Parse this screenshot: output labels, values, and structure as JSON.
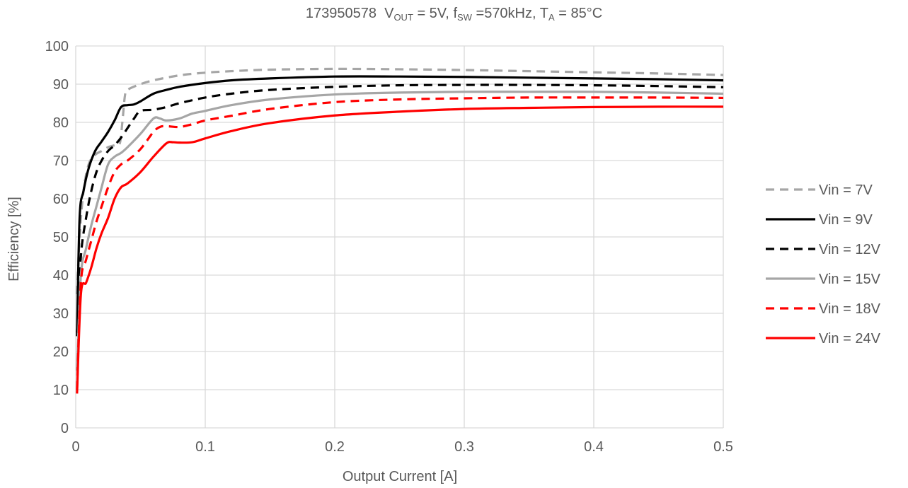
{
  "title": {
    "id": "173950578",
    "vout_main": "V",
    "vout_sub": "OUT",
    "vout_value": " = 5V,",
    "fsw_main": "f",
    "fsw_sub": "SW",
    "fsw_value": " =570kHz,",
    "ta_main": "T",
    "ta_sub": "A",
    "ta_value": " = 85°C"
  },
  "chart_data": {
    "type": "line",
    "title": "173950578  VOUT = 5V, fSW =570kHz, TA = 85°C",
    "xlabel": "Output  Current  [A]",
    "ylabel": "Efficiency  [%]",
    "xlim": [
      0,
      0.5
    ],
    "ylim": [
      0,
      100
    ],
    "xticks": [
      0,
      0.1,
      0.2,
      0.3,
      0.4,
      0.5
    ],
    "xtick_labels": [
      "0",
      "0.1",
      "0.2",
      "0.3",
      "0.4",
      "0.5"
    ],
    "yticks": [
      0,
      10,
      20,
      30,
      40,
      50,
      60,
      70,
      80,
      90,
      100
    ],
    "ytick_labels": [
      "0",
      "10",
      "20",
      "30",
      "40",
      "50",
      "60",
      "70",
      "80",
      "90",
      "100"
    ],
    "grid": true,
    "legend_position": "right",
    "series": [
      {
        "name": "Vin = 7V",
        "color": "#a6a6a6",
        "dash": true,
        "x": [
          0.001,
          0.003,
          0.006,
          0.01,
          0.015,
          0.02,
          0.025,
          0.03,
          0.034,
          0.036,
          0.038,
          0.04,
          0.05,
          0.06,
          0.08,
          0.1,
          0.12,
          0.15,
          0.2,
          0.25,
          0.3,
          0.35,
          0.4,
          0.45,
          0.5
        ],
        "y": [
          35,
          50,
          62,
          69,
          71.5,
          72.5,
          73.5,
          74,
          74.5,
          80,
          87,
          88.5,
          90,
          91,
          92.3,
          93,
          93.4,
          93.8,
          94,
          93.9,
          93.7,
          93.4,
          93.1,
          92.8,
          92.4
        ]
      },
      {
        "name": "Vin = 9V",
        "color": "#000000",
        "dash": false,
        "x": [
          0.001,
          0.003,
          0.006,
          0.01,
          0.015,
          0.02,
          0.025,
          0.03,
          0.035,
          0.04,
          0.045,
          0.05,
          0.06,
          0.07,
          0.08,
          0.1,
          0.12,
          0.15,
          0.2,
          0.25,
          0.3,
          0.35,
          0.4,
          0.45,
          0.5
        ],
        "y": [
          24,
          55,
          62,
          68,
          72.5,
          75,
          77.5,
          80.5,
          84,
          84.5,
          84.7,
          85.5,
          87.5,
          88.5,
          89.3,
          90.3,
          91,
          91.5,
          92,
          92,
          91.9,
          91.7,
          91.5,
          91.3,
          91
        ]
      },
      {
        "name": "Vin = 12V",
        "color": "#000000",
        "dash": true,
        "x": [
          0.001,
          0.004,
          0.008,
          0.012,
          0.016,
          0.02,
          0.025,
          0.03,
          0.035,
          0.04,
          0.045,
          0.05,
          0.06,
          0.07,
          0.08,
          0.1,
          0.12,
          0.15,
          0.2,
          0.25,
          0.3,
          0.35,
          0.4,
          0.45,
          0.5
        ],
        "y": [
          25,
          45,
          55,
          62,
          67,
          70,
          72.5,
          74,
          76,
          78.5,
          81,
          83,
          83.3,
          84,
          85,
          86.5,
          87.5,
          88.5,
          89.3,
          89.7,
          89.8,
          89.8,
          89.7,
          89.5,
          89.2
        ]
      },
      {
        "name": "Vin = 15V",
        "color": "#a6a6a6",
        "dash": false,
        "x": [
          0.001,
          0.004,
          0.008,
          0.012,
          0.016,
          0.02,
          0.025,
          0.03,
          0.035,
          0.04,
          0.05,
          0.06,
          0.065,
          0.07,
          0.08,
          0.09,
          0.1,
          0.12,
          0.15,
          0.2,
          0.25,
          0.3,
          0.35,
          0.4,
          0.45,
          0.5
        ],
        "y": [
          15,
          40,
          47,
          53,
          58,
          63,
          69,
          71,
          72,
          73.5,
          77,
          81,
          81,
          80.5,
          81,
          82.3,
          83,
          84.5,
          86,
          87.3,
          87.8,
          88,
          88,
          88,
          87.8,
          87.5
        ]
      },
      {
        "name": "Vin = 18V",
        "color": "#ff0000",
        "dash": true,
        "x": [
          0.001,
          0.004,
          0.008,
          0.012,
          0.016,
          0.02,
          0.025,
          0.03,
          0.035,
          0.04,
          0.05,
          0.06,
          0.065,
          0.07,
          0.08,
          0.09,
          0.1,
          0.12,
          0.15,
          0.2,
          0.25,
          0.3,
          0.35,
          0.4,
          0.45,
          0.5
        ],
        "y": [
          10,
          38,
          44,
          49,
          54,
          58,
          63,
          67,
          69,
          70,
          73,
          77.5,
          78.8,
          79,
          78.8,
          79.5,
          80.5,
          81.7,
          83.5,
          85.3,
          86,
          86.3,
          86.5,
          86.5,
          86.5,
          86.4
        ]
      },
      {
        "name": "Vin = 24V",
        "color": "#ff0000",
        "dash": false,
        "x": [
          0.001,
          0.004,
          0.008,
          0.012,
          0.016,
          0.02,
          0.025,
          0.03,
          0.035,
          0.04,
          0.05,
          0.06,
          0.07,
          0.075,
          0.08,
          0.09,
          0.1,
          0.12,
          0.15,
          0.2,
          0.25,
          0.3,
          0.35,
          0.4,
          0.45,
          0.5
        ],
        "y": [
          9,
          35,
          38,
          42,
          47,
          51,
          55,
          60,
          63,
          64,
          67,
          71,
          74.5,
          74.8,
          74.7,
          74.8,
          75.8,
          77.7,
          79.8,
          81.8,
          82.8,
          83.5,
          83.8,
          84,
          84.1,
          84.1
        ]
      }
    ]
  }
}
